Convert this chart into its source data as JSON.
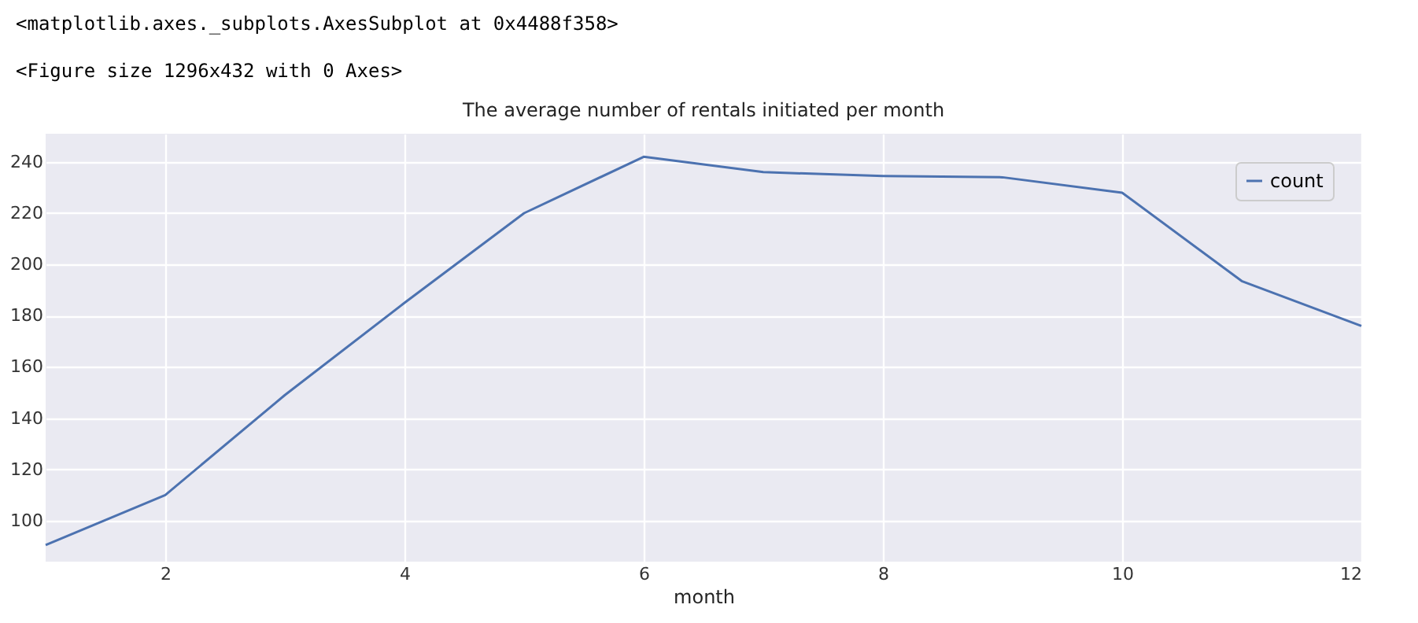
{
  "chart_data": {
    "type": "line",
    "title": "The average number of rentals initiated per month",
    "xlabel": "month",
    "annotations": [
      "<matplotlib.axes._subplots.AxesSubplot at 0x4488f358>",
      "<Figure size 1296x432 with 0 Axes>"
    ],
    "x": [
      1,
      2,
      3,
      4,
      5,
      6,
      7,
      8,
      9,
      10,
      11,
      12
    ],
    "series": [
      {
        "name": "count",
        "color": "#4c72b0",
        "values": [
          90.5,
          110,
          149,
          185,
          220,
          242,
          236,
          234.5,
          234,
          228,
          193.5,
          176
        ]
      }
    ],
    "xlim": [
      1,
      12
    ],
    "xticks": [
      2,
      4,
      6,
      8,
      10,
      12
    ],
    "ylim": [
      84,
      251
    ],
    "yticks": [
      100,
      120,
      140,
      160,
      180,
      200,
      220,
      240
    ],
    "grid": true,
    "legend": "top right"
  }
}
